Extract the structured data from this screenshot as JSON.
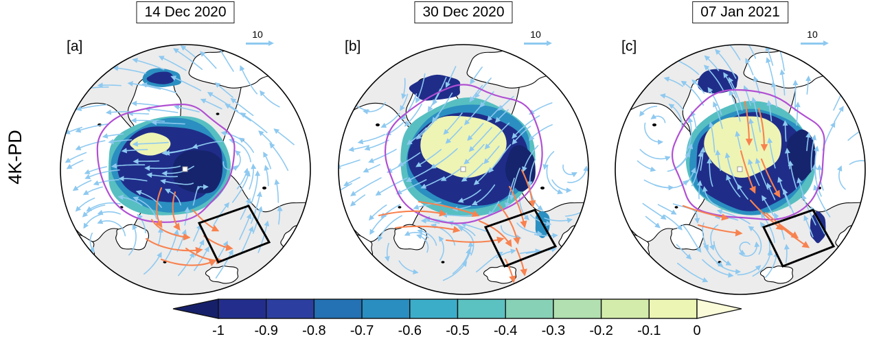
{
  "figure": {
    "row_label": "4K-PD"
  },
  "panels": [
    {
      "id": "a",
      "letter": "[a]",
      "title": "14 Dec 2020",
      "wind_ref_label": "10"
    },
    {
      "id": "b",
      "letter": "[b]",
      "title": "30 Dec 2020",
      "wind_ref_label": "10"
    },
    {
      "id": "c",
      "letter": "[c]",
      "title": "07 Jan 2021",
      "wind_ref_label": "10"
    }
  ],
  "chart_data": {
    "type": "heatmap",
    "subtype": "polar-stereographic-arctic-map-sequence",
    "panel_titles": [
      "14 Dec 2020",
      "30 Dec 2020",
      "07 Jan 2021"
    ],
    "panel_letters": [
      "[a]",
      "[b]",
      "[c]"
    ],
    "row_label": "4K-PD",
    "wind_reference": {
      "value": 10,
      "glyph": "rightward light-blue arrow"
    },
    "visible_layers": [
      "filled shading of sea-ice change from -1 to 0 (dark navy = large loss, pale yellow = near zero)",
      "light-blue wind streamline arrows over whole disc",
      "orange anomalous-wind arrows south of the ice pack",
      "purple sea-ice-edge contour",
      "black quadrilateral analysis box at lower right of each disc"
    ],
    "colorbar": {
      "orientation": "horizontal",
      "range": [
        -1,
        0
      ],
      "tick_labels": [
        "-1",
        "-0.9",
        "-0.8",
        "-0.7",
        "-0.6",
        "-0.5",
        "-0.4",
        "-0.3",
        "-0.2",
        "-0.1",
        "0"
      ],
      "segment_colors": [
        "#232e8c",
        "#2c3fa0",
        "#2471b3",
        "#2a8ec0",
        "#3cadc9",
        "#5cc1c1",
        "#87d1b6",
        "#b2e0b0",
        "#d4ecab",
        "#ecf5b4"
      ],
      "under_arrow_color": "#16206a",
      "over_arrow_color": "#f9fbd9"
    }
  },
  "style": {
    "streamline_color": "#8ec9f0",
    "anomaly_arrow_color": "#f8824f",
    "ice_edge_contour_color": "#b04fd3",
    "analysis_box_color": "#000000",
    "ocean_color": "#ececec",
    "land_color": "#ffffff",
    "coastline_color": "#000000",
    "shading_colors": {
      "deep_navy": "#16246e",
      "navy": "#1f2d89",
      "mid_blue": "#2b8fc1",
      "teal_fringe": "#57bfc1",
      "pale_yellow_core": "#eef4b4"
    }
  }
}
